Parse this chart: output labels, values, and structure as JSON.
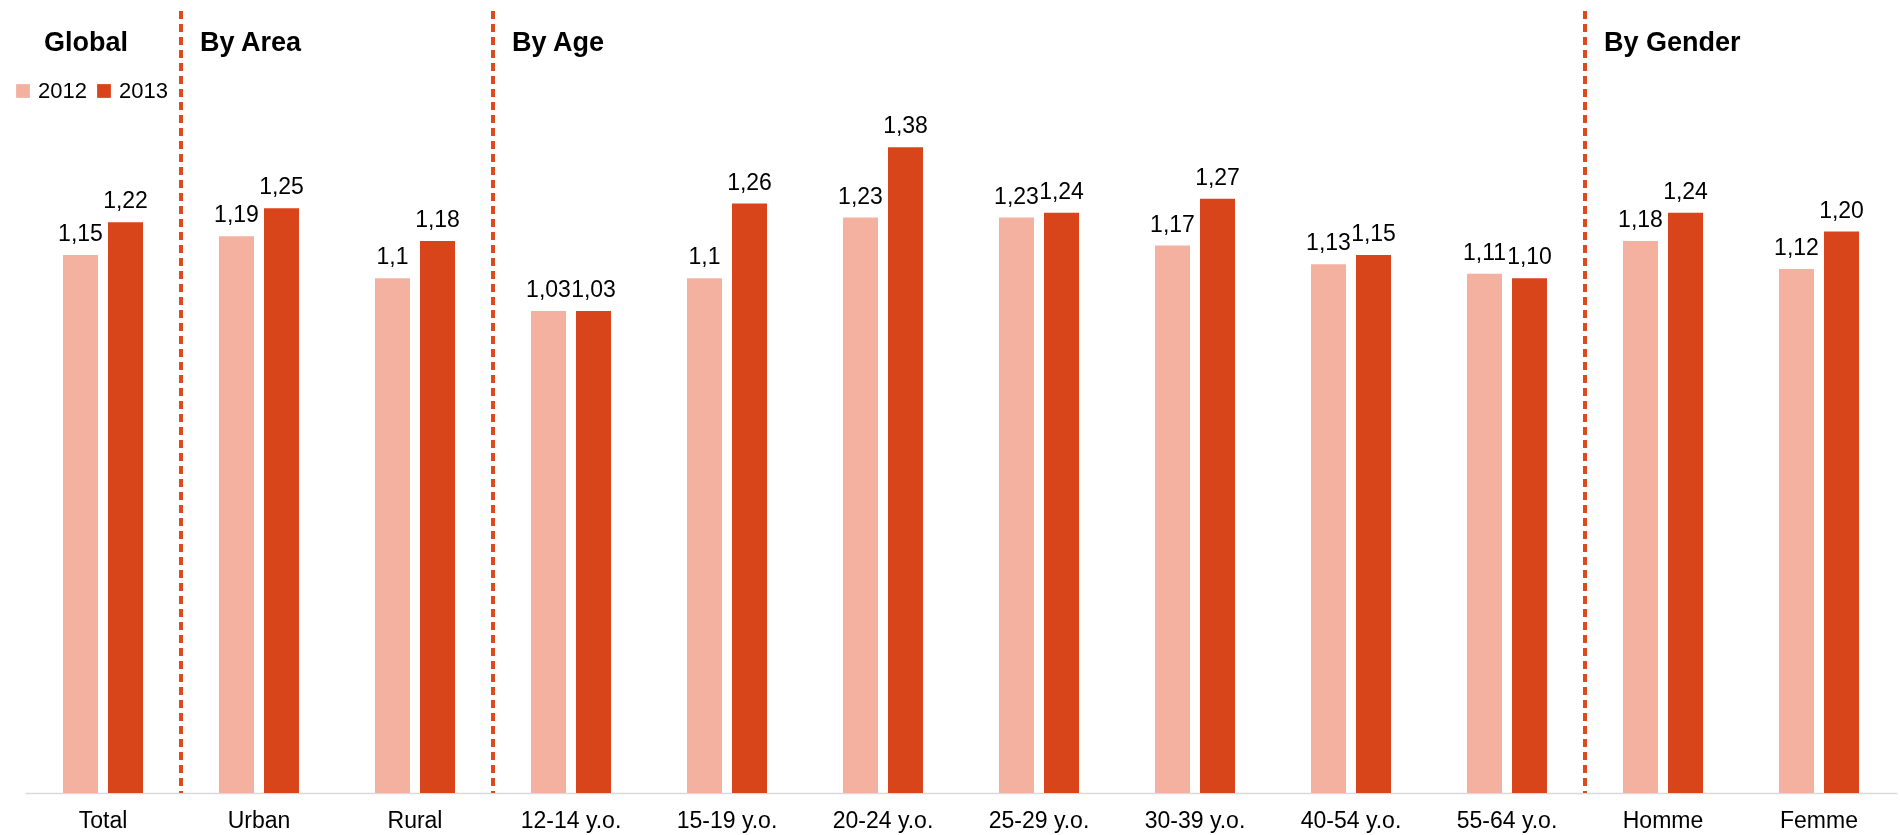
{
  "chart_data": {
    "type": "bar",
    "categories": [
      "Total",
      "Urban",
      "Rural",
      "12-14 y.o.",
      "15-19 y.o.",
      "20-24 y.o.",
      "25-29 y.o.",
      "30-39 y.o.",
      "40-54 y.o.",
      "55-64 y.o.",
      "Homme",
      "Femme"
    ],
    "series": [
      {
        "name": "2012",
        "color": "#f4b19f",
        "values": [
          1.15,
          1.19,
          1.1,
          1.03,
          1.1,
          1.23,
          1.23,
          1.17,
          1.13,
          1.11,
          1.18,
          1.12
        ],
        "value_labels": [
          "1,15",
          "1,19",
          "1,1",
          "1,03",
          "1,1",
          "1,23",
          "1,23",
          "1,17",
          "1,13",
          "1,11",
          "1,18",
          "1,12"
        ]
      },
      {
        "name": "2013",
        "color": "#d9451b",
        "values": [
          1.22,
          1.25,
          1.18,
          1.03,
          1.26,
          1.38,
          1.24,
          1.27,
          1.15,
          1.1,
          1.24,
          1.2
        ],
        "value_labels": [
          "1,22",
          "1,25",
          "1,18",
          "1,03",
          "1,26",
          "1,38",
          "1,24",
          "1,27",
          "1,15",
          "1,10",
          "1,24",
          "1,20"
        ]
      }
    ],
    "legend": "top left",
    "annotations": [
      "Global",
      "By Area",
      "By Age",
      "By Gender"
    ]
  }
}
